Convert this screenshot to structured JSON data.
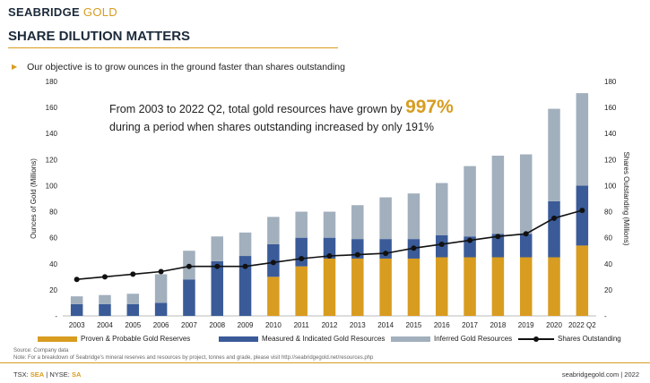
{
  "header": {
    "logo_part1": "SEABRIDGE",
    "logo_part2": "GOLD",
    "title": "SHARE DILUTION MATTERS",
    "bullet": "Our objective is to grow ounces in the ground faster than shares outstanding"
  },
  "callout": {
    "line1_prefix": "From 2003 to 2022 Q2, total gold resources have grown by",
    "highlight": "997%",
    "line2": "during a period when shares outstanding increased by only 191%"
  },
  "footer": {
    "source": "Source: Company data",
    "note": "Note: For a breakdown of Seabridge's mineral reserves and resources by project, tonnes and grade, please visit http://seabridgegold.net/resources.php",
    "ticker_tsx_label": "TSX:",
    "ticker_tsx": "SEA",
    "ticker_sep": "|",
    "ticker_nyse_label": "NYSE:",
    "ticker_nyse": "SA",
    "site": "seabridgegold.com  |  2022"
  },
  "colors": {
    "proven": "#d89c20",
    "measured": "#3a5b98",
    "inferred": "#a2afbd",
    "shares": "#111111",
    "accent": "#d89c20"
  },
  "chart_data": {
    "type": "bar",
    "stacked": true,
    "categories": [
      "2003",
      "2004",
      "2005",
      "2006",
      "2007",
      "2008",
      "2009",
      "2010",
      "2011",
      "2012",
      "2013",
      "2014",
      "2015",
      "2016",
      "2017",
      "2018",
      "2019",
      "2020",
      "2022 Q2"
    ],
    "ylabel": "Ounces of Gold (Millions)",
    "ylabel_right": "Shares Outstanding (Millions)",
    "ylim": [
      0,
      180
    ],
    "yticks": [
      "-",
      "20",
      "40",
      "60",
      "80",
      "100",
      "120",
      "140",
      "160",
      "180"
    ],
    "ylim_right": [
      0,
      180
    ],
    "yticks_right": [
      "-",
      "20",
      "40",
      "60",
      "80",
      "100",
      "120",
      "140",
      "160",
      "180"
    ],
    "grid": false,
    "legend_position": "bottom",
    "series": [
      {
        "name": "Proven & Probable Gold Reserves",
        "values": [
          0,
          0,
          0,
          0,
          0,
          0,
          0,
          30,
          38,
          44,
          44,
          44,
          44,
          45,
          45,
          45,
          45,
          45,
          54
        ]
      },
      {
        "name": "Measured & Indicated Gold Resources",
        "values": [
          9,
          9,
          9,
          10,
          28,
          42,
          46,
          25,
          22,
          16,
          15,
          15,
          15,
          17,
          16,
          18,
          18,
          43,
          46
        ]
      },
      {
        "name": "Inferred Gold Resources",
        "values": [
          6,
          7,
          8,
          22,
          22,
          19,
          18,
          21,
          20,
          20,
          26,
          32,
          35,
          40,
          54,
          60,
          61,
          71,
          71
        ]
      },
      {
        "name": "Shares Outstanding",
        "type": "line",
        "axis": "right",
        "values": [
          28,
          30,
          32,
          34,
          38,
          38,
          38,
          41,
          44,
          46,
          47,
          48,
          52,
          55,
          58,
          61,
          63,
          75,
          81
        ]
      }
    ]
  }
}
